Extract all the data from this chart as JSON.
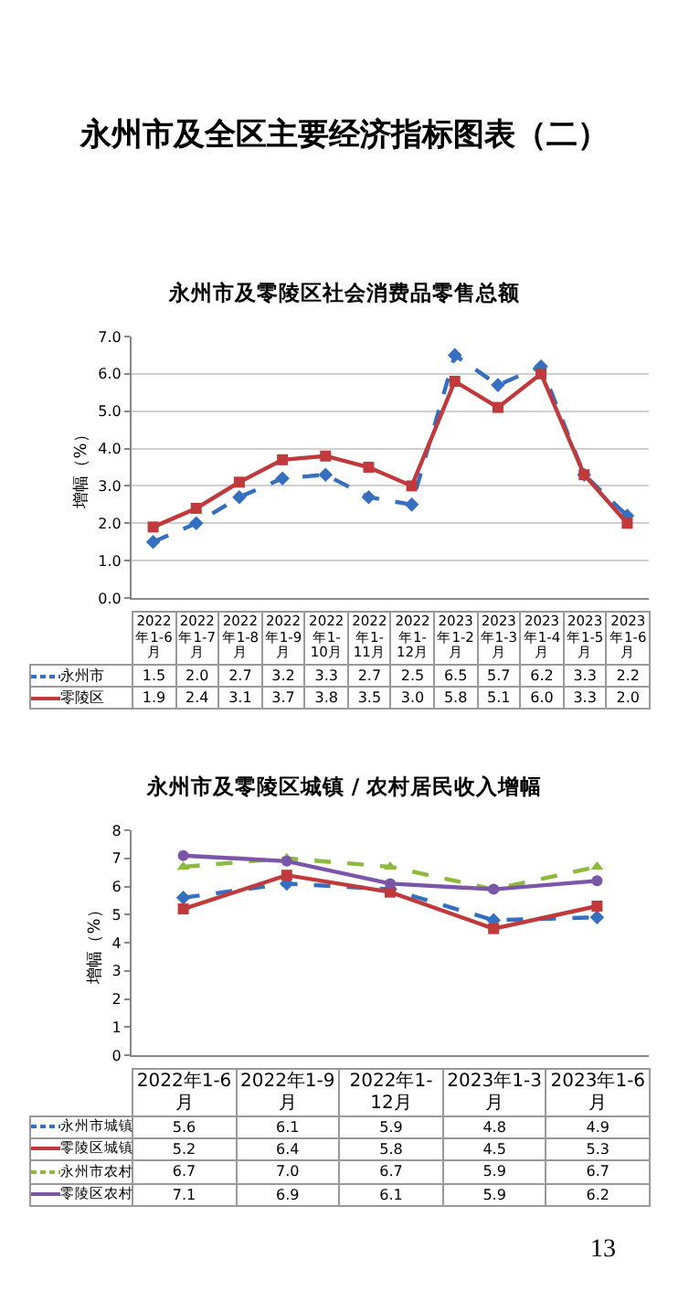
{
  "chart_data": [
    {
      "type": "line",
      "title": "永州市及零陵区社会消费品零售总额",
      "ylabel": "增幅（%）",
      "annotations": [
        "永州市及全区主要经济指标图表（二）"
      ],
      "categories": [
        "2022年1-6月",
        "2022年1-7月",
        "2022年1-8月",
        "2022年1-9月",
        "2022年1-10月",
        "2022年1-11月",
        "2022年1-12月",
        "2023年1-2月",
        "2023年1-3月",
        "2023年1-4月",
        "2023年1-5月",
        "2023年1-6月"
      ],
      "series": [
        {
          "name": "永州市",
          "color": "#3570c0",
          "marker": "diamond",
          "line_style": "dashed",
          "values": [
            1.5,
            2.0,
            2.7,
            3.2,
            3.3,
            2.7,
            2.5,
            6.5,
            5.7,
            6.2,
            3.3,
            2.2
          ],
          "value_labels": [
            "1.5",
            "2.0",
            "2.7",
            "3.2",
            "3.3",
            "2.7",
            "2.5",
            "6.5",
            "5.7",
            "6.2",
            "3.3",
            "2.2"
          ]
        },
        {
          "name": "零陵区",
          "color": "#c0393b",
          "marker": "square",
          "line_style": "solid",
          "values": [
            1.9,
            2.4,
            3.1,
            3.7,
            3.8,
            3.5,
            3.0,
            5.8,
            5.1,
            6.0,
            3.3,
            2.0
          ],
          "value_labels": [
            "1.9",
            "2.4",
            "3.1",
            "3.7",
            "3.8",
            "3.5",
            "3.0",
            "5.8",
            "5.1",
            "6.0",
            "3.3",
            "2.0"
          ]
        }
      ],
      "ylim": [
        0,
        7
      ],
      "yticks": [
        {
          "value": 0,
          "label": "0.0"
        },
        {
          "value": 1,
          "label": "1.0"
        },
        {
          "value": 2,
          "label": "2.0"
        },
        {
          "value": 3,
          "label": "3.0"
        },
        {
          "value": 4,
          "label": "4.0"
        },
        {
          "value": 5,
          "label": "5.0"
        },
        {
          "value": 6,
          "label": "6.0"
        },
        {
          "value": 7,
          "label": "7.0"
        }
      ],
      "grid": "y",
      "legend": "bottom",
      "tick_labels": "y"
    },
    {
      "type": "line",
      "title": "永州市及零陵区城镇 / 农村居民收入增幅",
      "ylabel": "增幅（%）",
      "annotations": [
        "13"
      ],
      "categories": [
        "2022年1-6月",
        "2022年1-9月",
        "2022年1-12月",
        "2023年1-3月",
        "2023年1-6月"
      ],
      "series": [
        {
          "name": "永州市城镇",
          "color": "#3570c0",
          "marker": "diamond",
          "line_style": "dashed",
          "values": [
            5.6,
            6.1,
            5.9,
            4.8,
            4.9
          ],
          "value_labels": [
            "5.6",
            "6.1",
            "5.9",
            "4.8",
            "4.9"
          ]
        },
        {
          "name": "零陵区城镇",
          "color": "#c0393b",
          "marker": "square",
          "line_style": "solid",
          "values": [
            5.2,
            6.4,
            5.8,
            4.5,
            5.3
          ],
          "value_labels": [
            "5.2",
            "6.4",
            "5.8",
            "4.5",
            "5.3"
          ]
        },
        {
          "name": "永州市农村",
          "color": "#8cbb3c",
          "marker": "triangle",
          "line_style": "dashed",
          "values": [
            6.7,
            7.0,
            6.7,
            5.9,
            6.7
          ],
          "value_labels": [
            "6.7",
            "7.0",
            "6.7",
            "5.9",
            "6.7"
          ]
        },
        {
          "name": "零陵区农村",
          "color": "#7a55a8",
          "marker": "circle",
          "line_style": "solid",
          "values": [
            7.1,
            6.9,
            6.1,
            5.9,
            6.2
          ],
          "value_labels": [
            "7.1",
            "6.9",
            "6.1",
            "5.9",
            "6.2"
          ]
        }
      ],
      "ylim": [
        0,
        8
      ],
      "yticks": [
        0,
        1,
        2,
        3,
        4,
        5,
        6,
        7,
        8
      ],
      "grid": false,
      "legend": "bottom",
      "tick_labels": "y"
    }
  ]
}
